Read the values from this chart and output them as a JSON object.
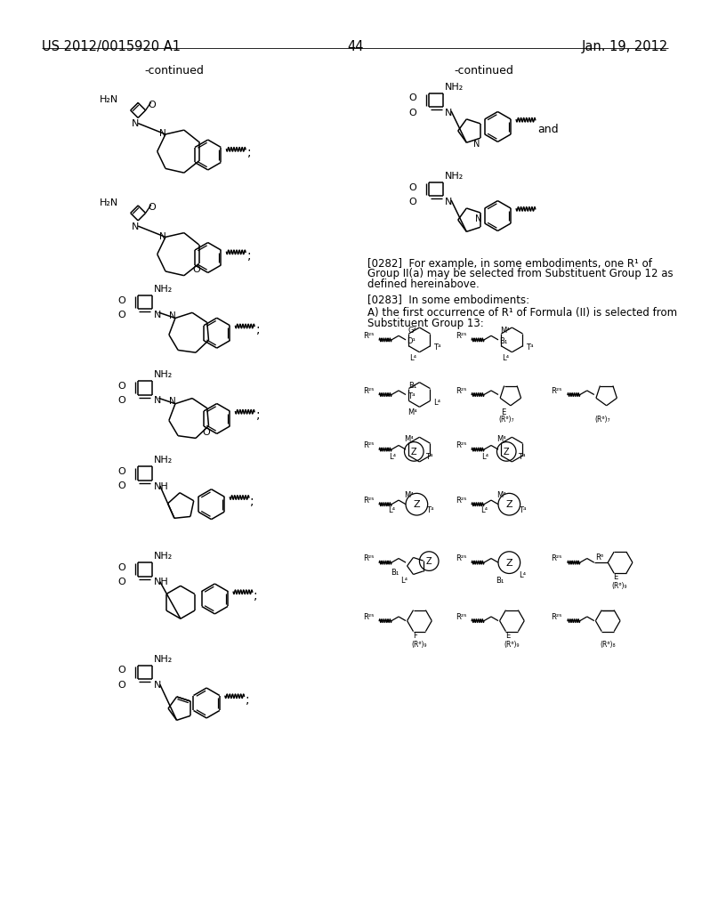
{
  "background": "#ffffff",
  "header_left": "US 2012/0015920 A1",
  "header_right": "Jan. 19, 2012",
  "page_number": "44",
  "continued": "-continued",
  "para282": "[0282] For example, in some embodiments, one R¹ of\nGroup II(a) may be selected from Substituent Group 12 as\ndefined hereinabove.",
  "para283": "[0283] In some embodiments:",
  "paraA": "A) the first occurrence of R¹ of Formula (II) is selected from\nSubstituent Group 13:"
}
